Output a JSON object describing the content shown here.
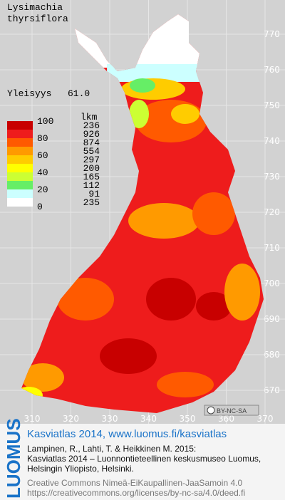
{
  "title": {
    "line1": "Lysimachia",
    "line2": "thyrsiflora"
  },
  "frequency": {
    "label": "Yleisyys",
    "value": "61.0"
  },
  "legend": {
    "count_header": "lkm",
    "scale": [
      100,
      80,
      60,
      40,
      20,
      0
    ],
    "classes": [
      {
        "color": "#c80000",
        "count": 236
      },
      {
        "color": "#ee1c1c",
        "count": 926
      },
      {
        "color": "#ff5a00",
        "count": 874
      },
      {
        "color": "#ff9a00",
        "count": 554
      },
      {
        "color": "#ffcc00",
        "count": 297
      },
      {
        "color": "#ffff00",
        "count": 200
      },
      {
        "color": "#ccff33",
        "count": 165
      },
      {
        "color": "#66ee66",
        "count": 112
      },
      {
        "color": "#ccffff",
        "count": 91
      },
      {
        "color": "#ffffff",
        "count": 235
      }
    ]
  },
  "map": {
    "yticks": [
      770,
      760,
      750,
      740,
      730,
      720,
      710,
      700,
      690,
      680,
      670
    ],
    "xticks": [
      310,
      320,
      330,
      340,
      350,
      360,
      370
    ]
  },
  "license_badge": "BY-NC-SA",
  "logo": "LUOMUS",
  "footer": {
    "heading": "Kasviatlas 2014, www.luomus.fi/kasviatlas",
    "lines": [
      "Lampinen, R., Lahti, T. & Heikkinen M. 2015:",
      "Kasviatlas 2014 – Luonnontieteellinen keskusmuseo Luomus,",
      "Helsingin Yliopisto, Helsinki."
    ],
    "license": [
      "Creative Commons Nimeä-EiKaupallinen-JaaSamoin 4.0",
      "https://creativecommons.org/licenses/by-nc-sa/4.0/deed.fi"
    ]
  }
}
